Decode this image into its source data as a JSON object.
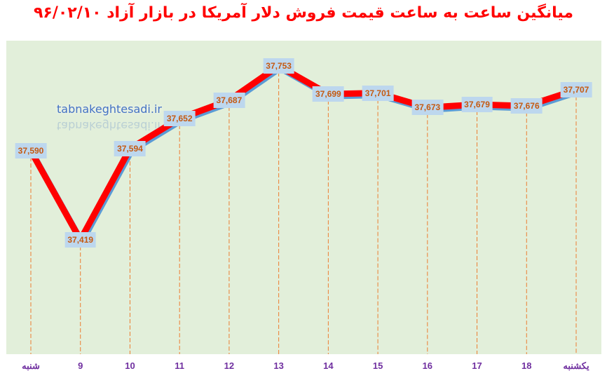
{
  "chart_data": {
    "type": "line",
    "title": "میانگین ساعت به ساعت قیمت فروش دلار آمریکا در بازار آزاد ۹۶/۰۲/۱۰",
    "xlabel": "",
    "ylabel": "",
    "categories": [
      "شنبه",
      "9",
      "10",
      "11",
      "12",
      "13",
      "14",
      "15",
      "16",
      "17",
      "18",
      "یکشنبه"
    ],
    "series": [
      {
        "name": "قیمت فروش دلار",
        "values": [
          37590,
          37419,
          37594,
          37652,
          37687,
          37753,
          37699,
          37701,
          37673,
          37679,
          37676,
          37707
        ],
        "labels": [
          "37,590",
          "37,419",
          "37,594",
          "37,652",
          "37,687",
          "37,753",
          "37,699",
          "37,701",
          "37,673",
          "37,679",
          "37,676",
          "37,707"
        ],
        "color": "#ff0000",
        "shadow_color": "#5b9bd5"
      }
    ],
    "grid": false,
    "drop_lines": true,
    "drop_line_color": "#ed7d31",
    "legend": "none",
    "background": "#e2efda"
  },
  "watermark": "tabnakeghtesadi.ir",
  "colors": {
    "title": "#ff0000",
    "axis_labels": "#7030a0",
    "data_label_text": "#c55a11",
    "data_label_bg": "#bdd7ee"
  }
}
